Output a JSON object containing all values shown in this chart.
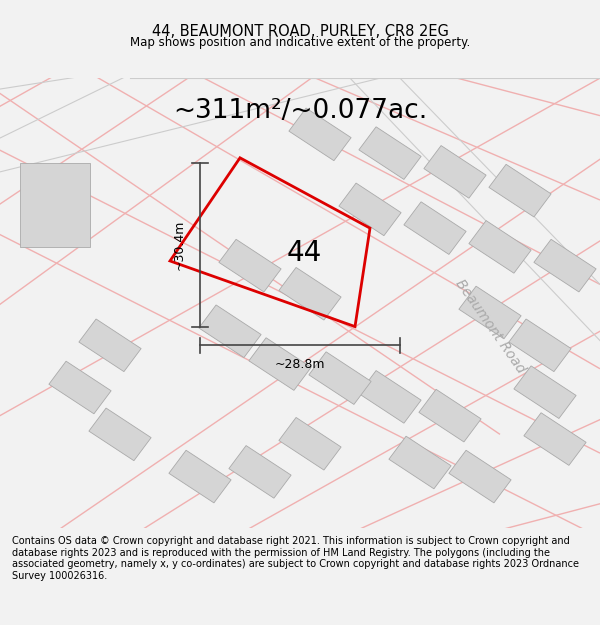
{
  "title_line1": "44, BEAUMONT ROAD, PURLEY, CR8 2EG",
  "title_line2": "Map shows position and indicative extent of the property.",
  "area_label": "~311m²/~0.077ac.",
  "number_label": "44",
  "width_label": "~28.8m",
  "height_label": "~30.4m",
  "road_label": "Beaumont Road",
  "footer_text": "Contains OS data © Crown copyright and database right 2021. This information is subject to Crown copyright and database rights 2023 and is reproduced with the permission of HM Land Registry. The polygons (including the associated geometry, namely x, y co-ordinates) are subject to Crown copyright and database rights 2023 Ordnance Survey 100026316.",
  "bg_color": "#f2f2f2",
  "map_bg": "#ffffff",
  "plot_color_red": "#dd0000",
  "plot_fill": "none",
  "neighbor_fill": "#d5d5d5",
  "neighbor_edge": "#aaaaaa",
  "road_line_color": "#f0b0b0",
  "road_outline_color": "#cccccc",
  "dim_line_color": "#444444",
  "title_fontsize": 10.5,
  "subtitle_fontsize": 8.5,
  "area_fontsize": 19,
  "number_fontsize": 20,
  "dim_fontsize": 9,
  "road_fontsize": 10,
  "footer_fontsize": 7
}
